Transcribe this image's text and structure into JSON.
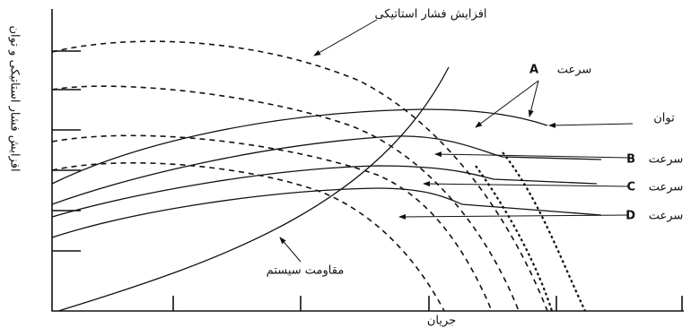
{
  "annotation": "افزایش فشار استاتیکی",
  "y_axis_label": "افزایش فشار استاتیکی و توان",
  "x_axis_label": "جریان",
  "power_label": "توان",
  "system_resistance_label": "مقاومت سیستم",
  "speeds": [
    {
      "word": "سرعت",
      "letter": "A"
    },
    {
      "word": "سرعت",
      "letter": "B"
    },
    {
      "word": "سرعت",
      "letter": "C"
    },
    {
      "word": "سرعت",
      "letter": "D"
    }
  ]
}
